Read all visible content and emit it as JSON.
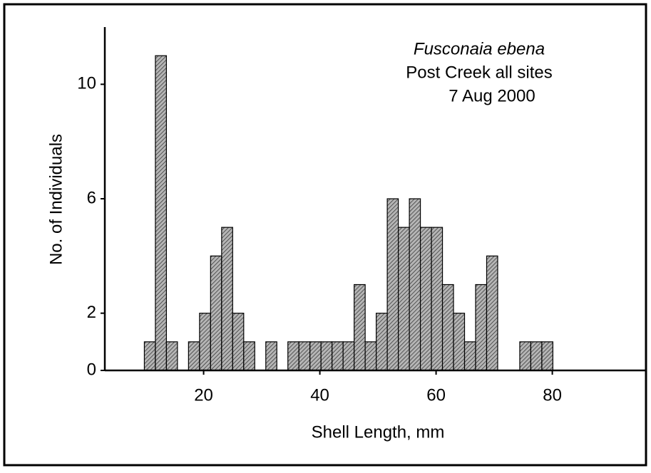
{
  "chart_data": {
    "type": "histogram",
    "title": "Fusconaia ebena",
    "subtitle": [
      "Post Creek all sites",
      "7 Aug 2000"
    ],
    "x_label": "Shell Length, mm",
    "y_label": "No. of Individuals",
    "bins": [
      9.8,
      11.7,
      13.6,
      15.5,
      17.4,
      19.3,
      21.2,
      23.1,
      25.0,
      26.9,
      28.8,
      30.7,
      32.6,
      34.5,
      36.4,
      38.3,
      40.2,
      42.1,
      44.0,
      45.9,
      47.8,
      49.7,
      51.6,
      53.5,
      55.4,
      57.3,
      59.2,
      61.1,
      63.0,
      64.9,
      66.8,
      68.7,
      70.6,
      72.5,
      74.4,
      76.3,
      78.2,
      80.1
    ],
    "values": [
      1,
      11,
      1,
      0,
      1,
      2,
      4,
      5,
      2,
      1,
      0,
      1,
      0,
      1,
      1,
      1,
      1,
      1,
      1,
      3,
      1,
      2,
      6,
      5,
      6,
      5,
      5,
      3,
      2,
      1,
      3,
      4,
      0,
      0,
      1,
      1,
      1
    ],
    "color": "#8a8a8a",
    "xlim": [
      3,
      96
    ],
    "ylim": [
      0,
      12
    ],
    "xticks": [
      20,
      40,
      60,
      80
    ],
    "yticks": [
      0,
      2,
      6,
      10
    ]
  }
}
